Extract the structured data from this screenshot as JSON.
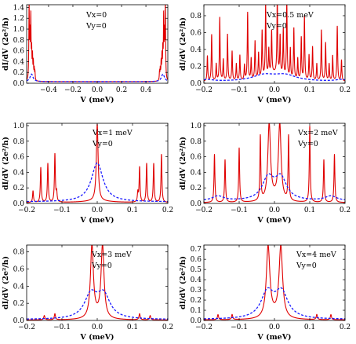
{
  "chart_data": [
    {
      "type": "line",
      "panel": "Vx=0",
      "annotations": [
        "Vx=0",
        "Vy=0"
      ],
      "xlabel": "V (meV)",
      "ylabel": "dI/dV (2e²/h)",
      "xlim": [
        -0.58,
        0.58
      ],
      "ylim": [
        0,
        1.45
      ],
      "xticks": [
        -0.4,
        -0.2,
        0.0,
        0.2,
        0.4
      ],
      "xtick_labels": [
        "−0.4",
        "−0.2",
        "0.0",
        "0.2",
        "0.4"
      ],
      "yticks": [
        0.0,
        0.2,
        0.4,
        0.6,
        0.8,
        1.0,
        1.2,
        1.4
      ],
      "ytick_labels": [
        "0.0",
        "0.2",
        "0.4",
        "0.6",
        "0.8",
        "1.0",
        "1.2",
        "1.4"
      ],
      "series": [
        {
          "style": "solid",
          "color": "#e00000",
          "baseline": 0.03,
          "lor": [],
          "spikes": [
            [
              -0.56,
              1.35
            ],
            [
              -0.553,
              0.75
            ],
            [
              -0.546,
              1.1
            ],
            [
              -0.539,
              0.5
            ],
            [
              -0.532,
              0.42
            ],
            [
              -0.525,
              0.3
            ],
            [
              -0.518,
              0.2
            ],
            [
              -0.512,
              0.15
            ],
            [
              0.512,
              0.15
            ],
            [
              0.518,
              0.2
            ],
            [
              0.525,
              0.3
            ],
            [
              0.532,
              0.42
            ],
            [
              0.539,
              0.5
            ],
            [
              0.546,
              1.1
            ],
            [
              0.553,
              0.75
            ],
            [
              0.56,
              1.35
            ]
          ],
          "spike_width": 0.0025
        },
        {
          "style": "dashed",
          "color": "#1a1aff",
          "baseline": 0.03,
          "lor": [
            [
              -0.54,
              0.14,
              0.015
            ],
            [
              0.54,
              0.14,
              0.015
            ]
          ],
          "spikes": [],
          "spike_width": 0
        }
      ]
    },
    {
      "type": "line",
      "panel": "Vx=0.5 meV",
      "annotations": [
        "Vx=0.5 meV",
        "Vy=0"
      ],
      "xlabel": "V (meV)",
      "ylabel": "dI/dV (2e²/h)",
      "xlim": [
        -0.2,
        0.2
      ],
      "ylim": [
        0,
        0.93
      ],
      "xticks": [
        -0.2,
        -0.1,
        0.0,
        0.1,
        0.2
      ],
      "xtick_labels": [
        "−0.2",
        "−0.1",
        "0.0",
        "0.1",
        "0.2"
      ],
      "yticks": [
        0.0,
        0.2,
        0.4,
        0.6,
        0.8
      ],
      "ytick_labels": [
        "0.0",
        "0.2",
        "0.4",
        "0.6",
        "0.8"
      ],
      "series": [
        {
          "style": "solid",
          "color": "#e00000",
          "baseline": 0.02,
          "lor": [
            [
              0.0,
              0.1,
              0.03
            ]
          ],
          "spikes": [
            [
              -0.19,
              0.3
            ],
            [
              -0.178,
              0.55
            ],
            [
              -0.165,
              0.2
            ],
            [
              -0.155,
              0.75
            ],
            [
              -0.145,
              0.25
            ],
            [
              -0.133,
              0.55
            ],
            [
              -0.12,
              0.35
            ],
            [
              -0.108,
              0.2
            ],
            [
              -0.098,
              0.3
            ],
            [
              -0.085,
              0.18
            ],
            [
              -0.076,
              0.8
            ],
            [
              -0.066,
              0.25
            ],
            [
              -0.055,
              0.45
            ],
            [
              -0.045,
              0.3
            ],
            [
              -0.035,
              0.55
            ],
            [
              -0.025,
              0.85
            ],
            [
              -0.016,
              0.3
            ],
            [
              -0.008,
              0.5
            ],
            [
              0.008,
              0.9
            ],
            [
              0.016,
              0.45
            ],
            [
              0.025,
              0.55
            ],
            [
              0.035,
              0.9
            ],
            [
              0.045,
              0.35
            ],
            [
              0.055,
              0.6
            ],
            [
              0.066,
              0.25
            ],
            [
              0.076,
              0.5
            ],
            [
              0.085,
              0.75
            ],
            [
              0.098,
              0.3
            ],
            [
              0.108,
              0.4
            ],
            [
              0.12,
              0.2
            ],
            [
              0.133,
              0.6
            ],
            [
              0.145,
              0.45
            ],
            [
              0.155,
              0.2
            ],
            [
              0.165,
              0.3
            ],
            [
              0.178,
              0.65
            ],
            [
              0.19,
              0.25
            ]
          ],
          "spike_width": 0.0012
        },
        {
          "style": "dashed",
          "color": "#1a1aff",
          "baseline": 0.02,
          "lor": [
            [
              -0.03,
              0.07,
              0.04
            ],
            [
              0.03,
              0.07,
              0.04
            ],
            [
              -0.19,
              0.02,
              0.02
            ],
            [
              0.19,
              0.02,
              0.02
            ]
          ],
          "spikes": [],
          "spike_width": 0
        }
      ]
    },
    {
      "type": "line",
      "panel": "Vx=1 meV",
      "annotations": [
        "Vx=1 meV",
        "Vy=0"
      ],
      "xlabel": "V (meV)",
      "ylabel": "dI/dV (2e²/h)",
      "xlim": [
        -0.2,
        0.2
      ],
      "ylim": [
        0,
        1.03
      ],
      "xticks": [
        -0.2,
        -0.1,
        0.0,
        0.1,
        0.2
      ],
      "xtick_labels": [
        "−0.2",
        "−0.1",
        "0.0",
        "0.1",
        "0.2"
      ],
      "yticks": [
        0.0,
        0.2,
        0.4,
        0.6,
        0.8,
        1.0
      ],
      "ytick_labels": [
        "0.0",
        "0.2",
        "0.4",
        "0.6",
        "0.8",
        "1.0"
      ],
      "series": [
        {
          "style": "solid",
          "color": "#e00000",
          "baseline": 0.01,
          "lor": [
            [
              0.0,
              0.99,
              0.003
            ],
            [
              0.0,
              0.02,
              0.05
            ]
          ],
          "spikes": [
            [
              -0.182,
              0.15
            ],
            [
              -0.16,
              0.45
            ],
            [
              -0.14,
              0.5
            ],
            [
              -0.12,
              0.62
            ],
            [
              -0.115,
              0.12
            ],
            [
              0.115,
              0.12
            ],
            [
              0.12,
              0.45
            ],
            [
              0.14,
              0.5
            ],
            [
              0.16,
              0.5
            ],
            [
              0.182,
              0.62
            ]
          ],
          "spike_width": 0.0015
        },
        {
          "style": "dashed",
          "color": "#1a1aff",
          "baseline": 0.02,
          "lor": [
            [
              0.0,
              0.5,
              0.02
            ]
          ],
          "spikes": [],
          "spike_width": 0
        }
      ]
    },
    {
      "type": "line",
      "panel": "Vx=2 meV",
      "annotations": [
        "Vx=2 meV",
        "Vy=0"
      ],
      "xlabel": "V (meV)",
      "ylabel": "dI/dV (2e²/h)",
      "xlim": [
        -0.2,
        0.2
      ],
      "ylim": [
        0,
        1.03
      ],
      "xticks": [
        -0.2,
        -0.1,
        0.0,
        0.1,
        0.2
      ],
      "xtick_labels": [
        "−0.2",
        "−0.1",
        "0.0",
        "0.1",
        "0.2"
      ],
      "yticks": [
        0.0,
        0.2,
        0.4,
        0.6,
        0.8,
        1.0
      ],
      "ytick_labels": [
        "0.0",
        "0.2",
        "0.4",
        "0.6",
        "0.8",
        "1.0"
      ],
      "series": [
        {
          "style": "solid",
          "color": "#e00000",
          "baseline": 0.01,
          "lor": [
            [
              -0.015,
              0.98,
              0.0045
            ],
            [
              0.015,
              0.98,
              0.0045
            ],
            [
              0.0,
              0.05,
              0.02
            ]
          ],
          "spikes": [
            [
              -0.17,
              0.62
            ],
            [
              -0.14,
              0.55
            ],
            [
              -0.1,
              0.7
            ],
            [
              -0.04,
              0.83
            ],
            [
              0.04,
              0.83
            ],
            [
              0.1,
              0.98
            ],
            [
              0.14,
              0.55
            ],
            [
              0.17,
              0.62
            ]
          ],
          "spike_width": 0.0015
        },
        {
          "style": "dashed",
          "color": "#1a1aff",
          "baseline": 0.03,
          "lor": [
            [
              -0.018,
              0.28,
              0.02
            ],
            [
              0.018,
              0.28,
              0.02
            ],
            [
              -0.16,
              0.06,
              0.02
            ],
            [
              0.16,
              0.06,
              0.02
            ]
          ],
          "spikes": [],
          "spike_width": 0
        }
      ]
    },
    {
      "type": "line",
      "panel": "Vx=3 meV",
      "annotations": [
        "Vx=3 meV",
        "Vy=0"
      ],
      "xlabel": "V (meV)",
      "ylabel": "dI/dV (2e²/h)",
      "xlim": [
        -0.2,
        0.2
      ],
      "ylim": [
        0,
        0.88
      ],
      "xticks": [
        -0.2,
        -0.1,
        0.0,
        0.1,
        0.2
      ],
      "xtick_labels": [
        "−0.2",
        "−0.1",
        "0.0",
        "0.1",
        "0.2"
      ],
      "yticks": [
        0.0,
        0.2,
        0.4,
        0.6,
        0.8
      ],
      "ytick_labels": [
        "0.0",
        "0.2",
        "0.4",
        "0.6",
        "0.8"
      ],
      "series": [
        {
          "style": "solid",
          "color": "#e00000",
          "baseline": 0.005,
          "lor": [
            [
              -0.015,
              0.85,
              0.005
            ],
            [
              0.015,
              0.85,
              0.005
            ],
            [
              0.0,
              0.03,
              0.02
            ]
          ],
          "spikes": [
            [
              -0.15,
              0.05
            ],
            [
              -0.12,
              0.07
            ],
            [
              0.12,
              0.07
            ],
            [
              0.15,
              0.05
            ]
          ],
          "spike_width": 0.002
        },
        {
          "style": "dashed",
          "color": "#1a1aff",
          "baseline": 0.01,
          "lor": [
            [
              -0.018,
              0.27,
              0.022
            ],
            [
              0.018,
              0.27,
              0.022
            ]
          ],
          "spikes": [],
          "spike_width": 0
        }
      ]
    },
    {
      "type": "line",
      "panel": "Vx=4 meV",
      "annotations": [
        "Vx=4 meV",
        "Vy=0"
      ],
      "xlabel": "V (meV)",
      "ylabel": "dI/dV (2e²/h)",
      "xlim": [
        -0.2,
        0.2
      ],
      "ylim": [
        0,
        0.74
      ],
      "xticks": [
        -0.2,
        -0.1,
        0.0,
        0.1,
        0.2
      ],
      "xtick_labels": [
        "−0.2",
        "−0.1",
        "0.0",
        "0.1",
        "0.2"
      ],
      "yticks": [
        0.0,
        0.1,
        0.2,
        0.3,
        0.4,
        0.5,
        0.6,
        0.7
      ],
      "ytick_labels": [
        "0.0",
        "0.1",
        "0.2",
        "0.3",
        "0.4",
        "0.5",
        "0.6",
        "0.7"
      ],
      "series": [
        {
          "style": "solid",
          "color": "#e00000",
          "baseline": 0.005,
          "lor": [
            [
              -0.018,
              0.7,
              0.006
            ],
            [
              0.018,
              0.7,
              0.006
            ],
            [
              0.0,
              0.03,
              0.02
            ]
          ],
          "spikes": [
            [
              -0.16,
              0.05
            ],
            [
              -0.12,
              0.05
            ],
            [
              0.12,
              0.05
            ],
            [
              0.16,
              0.05
            ]
          ],
          "spike_width": 0.002
        },
        {
          "style": "dashed",
          "color": "#1a1aff",
          "baseline": 0.01,
          "lor": [
            [
              -0.02,
              0.25,
              0.022
            ],
            [
              0.02,
              0.25,
              0.022
            ]
          ],
          "spikes": [],
          "spike_width": 0
        }
      ]
    }
  ]
}
